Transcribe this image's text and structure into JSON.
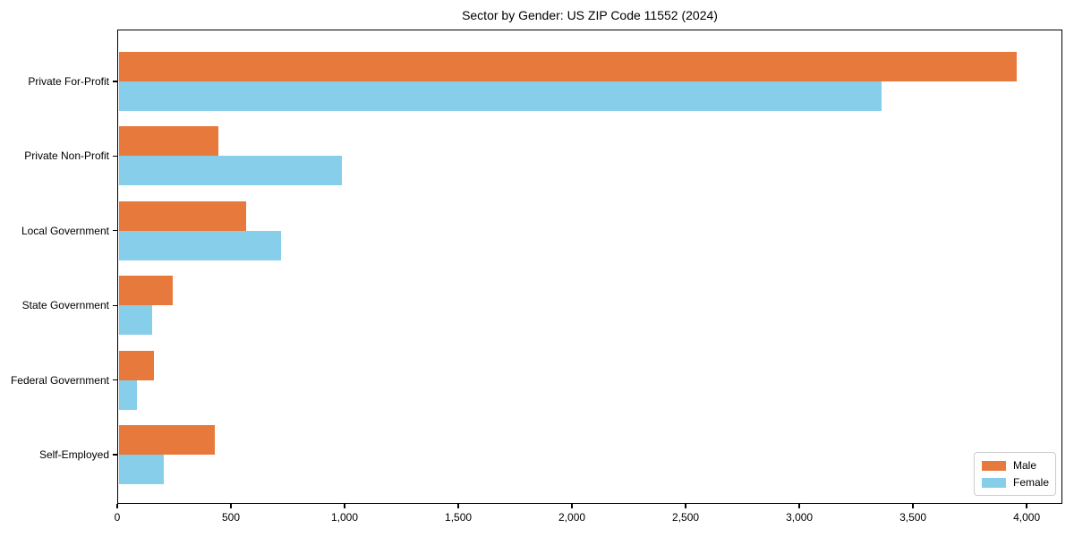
{
  "chart_data": {
    "type": "bar",
    "orientation": "horizontal",
    "title": "Sector by Gender: US ZIP Code 11552 (2024)",
    "xlabel": "",
    "ylabel": "",
    "categories": [
      "Private For-Profit",
      "Private Non-Profit",
      "Local Government",
      "State Government",
      "Federal Government",
      "Self-Employed"
    ],
    "series": [
      {
        "name": "Male",
        "color": "#E8793C",
        "values": [
          3956,
          445,
          565,
          245,
          160,
          430
        ]
      },
      {
        "name": "Female",
        "color": "#87CEEB",
        "values": [
          3360,
          990,
          720,
          155,
          85,
          205
        ]
      }
    ],
    "xlim": [
      0,
      4157
    ],
    "xticks": [
      0,
      500,
      1000,
      1500,
      2000,
      2500,
      3000,
      3500,
      4000
    ],
    "xtick_labels": [
      "0",
      "500",
      "1,000",
      "1,500",
      "2,000",
      "2,500",
      "3,000",
      "3,500",
      "4,000"
    ],
    "grid": false,
    "legend_position": "lower right",
    "background_color": "#ffffff",
    "frame_color": "#000000"
  }
}
